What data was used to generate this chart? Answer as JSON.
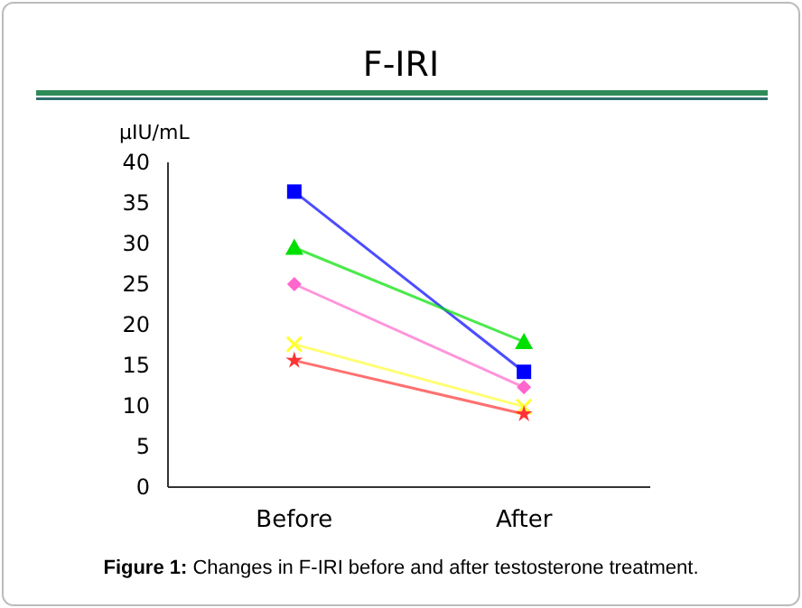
{
  "chart_data": {
    "type": "line",
    "title": "F-IRI",
    "ylabel": "µIU/mL",
    "categories": [
      "Before",
      "After"
    ],
    "series": [
      {
        "color": "#0000ff",
        "marker": "square",
        "values": [
          36.4,
          14.2
        ]
      },
      {
        "color": "#00e000",
        "marker": "triangle",
        "values": [
          29.5,
          17.9
        ]
      },
      {
        "color": "#ff66cc",
        "marker": "diamond",
        "values": [
          25.0,
          12.3
        ]
      },
      {
        "color": "#ffff33",
        "marker": "cross",
        "values": [
          17.6,
          9.9
        ]
      },
      {
        "color": "#ff3333",
        "marker": "star",
        "values": [
          15.6,
          9.0
        ]
      }
    ],
    "ylim": [
      0,
      40
    ],
    "yticks": [
      0,
      5,
      10,
      15,
      20,
      25,
      30,
      35,
      40
    ],
    "grid": false,
    "annotations": [
      "Figure 1: Changes in F-IRI before and after testosterone treatment."
    ]
  }
}
